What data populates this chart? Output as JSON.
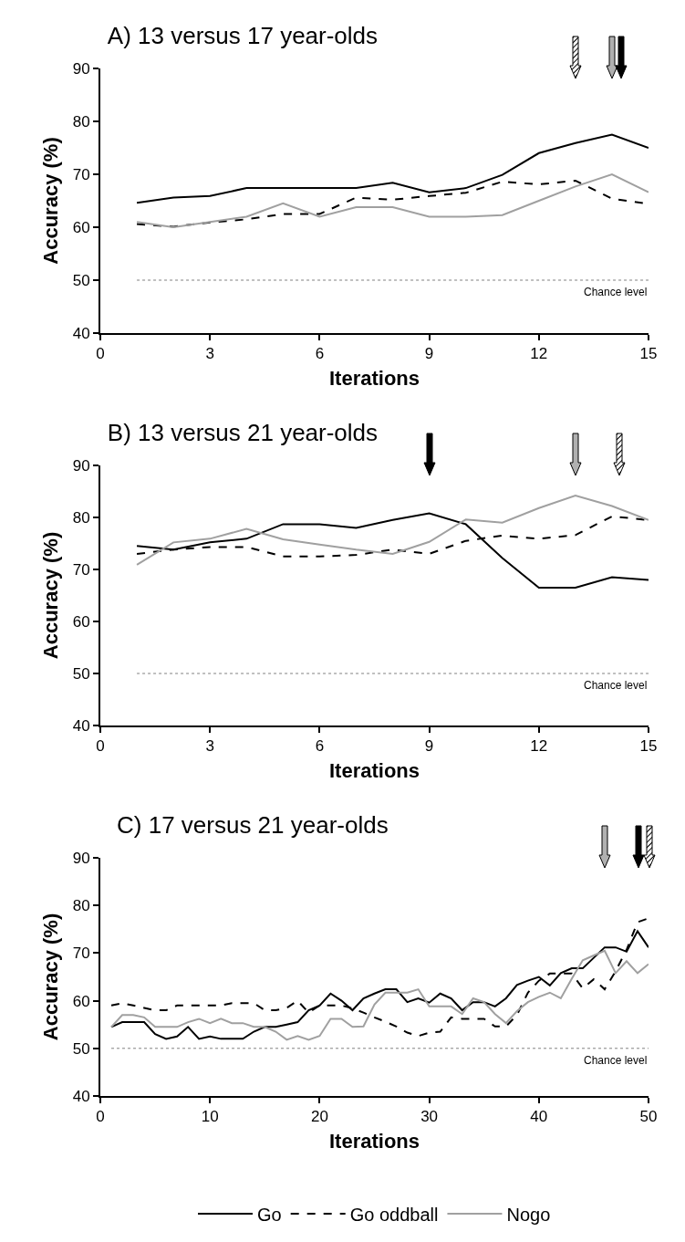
{
  "chart_data": [
    {
      "type": "line",
      "title": "A) 13 versus 17 year-olds",
      "xlabel": "Iterations",
      "ylabel": "Accuracy (%)",
      "x": [
        1,
        2,
        3,
        4,
        5,
        6,
        7,
        8,
        9,
        10,
        11,
        12,
        13,
        14,
        15
      ],
      "xlim": [
        0,
        15
      ],
      "xticks": [
        0,
        3,
        6,
        9,
        12,
        15
      ],
      "ylim": [
        40,
        90
      ],
      "yticks": [
        40,
        50,
        60,
        70,
        80,
        90
      ],
      "grid": false,
      "legend": false,
      "marker": "none",
      "series": [
        {
          "color": "#000000",
          "line_style": "solid",
          "values": [
            64.6,
            65.6,
            65.9,
            67.4,
            67.4,
            67.4,
            67.4,
            68.4,
            66.6,
            67.4,
            69.9,
            74,
            75.9,
            77.5,
            75
          ]
        },
        {
          "color": "#000000",
          "line_style": "dashed",
          "values": [
            60.6,
            60.1,
            60.9,
            61.5,
            62.5,
            62.5,
            65.6,
            65.2,
            65.9,
            66.5,
            68.6,
            68.1,
            68.8,
            65.4,
            64.4
          ]
        },
        {
          "color": "#a0a0a0",
          "line_style": "solid",
          "values": [
            61,
            60,
            61,
            62,
            64.5,
            62,
            63.8,
            63.8,
            62,
            62,
            62.3,
            65,
            67.7,
            70,
            66.6
          ]
        }
      ],
      "ref_lines": [
        {
          "axis": "y",
          "value": 50,
          "label": "Chance level",
          "color": "#808080",
          "line_style": "dotted"
        }
      ]
    },
    {
      "type": "line",
      "title": "B) 13 versus 21 year-olds",
      "xlabel": "Iterations",
      "ylabel": "Accuracy (%)",
      "x": [
        1,
        2,
        3,
        4,
        5,
        6,
        7,
        8,
        9,
        10,
        11,
        12,
        13,
        14,
        15
      ],
      "xlim": [
        0,
        15
      ],
      "xticks": [
        0,
        3,
        6,
        9,
        12,
        15
      ],
      "ylim": [
        40,
        90
      ],
      "yticks": [
        40,
        50,
        60,
        70,
        80,
        90
      ],
      "grid": false,
      "legend": false,
      "marker": "none",
      "series": [
        {
          "color": "#000000",
          "line_style": "solid",
          "values": [
            74.5,
            73.8,
            75.2,
            75.9,
            78.7,
            78.7,
            78,
            79.5,
            80.8,
            78.7,
            72.2,
            66.5,
            66.5,
            68.5,
            68
          ]
        },
        {
          "color": "#000000",
          "line_style": "dashed",
          "values": [
            73,
            73.8,
            74.3,
            74.3,
            72.5,
            72.5,
            72.8,
            73.8,
            73,
            75.5,
            76.5,
            75.9,
            76.6,
            80.2,
            79.5
          ]
        },
        {
          "color": "#a0a0a0",
          "line_style": "solid",
          "values": [
            70.9,
            75.2,
            75.9,
            77.8,
            75.8,
            74.8,
            73.8,
            73,
            75.3,
            79.6,
            79,
            81.8,
            84.2,
            82.2,
            79.5
          ]
        }
      ],
      "ref_lines": [
        {
          "axis": "y",
          "value": 50,
          "label": "Chance level",
          "color": "#808080",
          "line_style": "dotted"
        }
      ]
    },
    {
      "type": "line",
      "title": "C) 17 versus 21 year-olds",
      "xlabel": "Iterations",
      "ylabel": "Accuracy (%)",
      "x": [
        1,
        2,
        3,
        4,
        5,
        6,
        7,
        8,
        9,
        10,
        11,
        12,
        13,
        14,
        15,
        16,
        17,
        18,
        19,
        20,
        21,
        22,
        23,
        24,
        25,
        26,
        27,
        28,
        29,
        30,
        31,
        32,
        33,
        34,
        35,
        36,
        37,
        38,
        39,
        40,
        41,
        42,
        43,
        44,
        45,
        46,
        47,
        48,
        49,
        50
      ],
      "xlim": [
        0,
        50
      ],
      "xticks": [
        0,
        10,
        20,
        30,
        40,
        50
      ],
      "ylim": [
        40,
        90
      ],
      "yticks": [
        40,
        50,
        60,
        70,
        80,
        90
      ],
      "grid": false,
      "legend": "bottom",
      "marker": "none",
      "series": [
        {
          "name": "Go",
          "color": "#000000",
          "line_style": "solid",
          "values": [
            54.5,
            55.5,
            55.5,
            55.5,
            53,
            52,
            52.5,
            54.5,
            52,
            52.5,
            52,
            52,
            52,
            53.5,
            54.5,
            54.5,
            55,
            55.5,
            58,
            59,
            61.5,
            60,
            58,
            60.5,
            61.5,
            62.4,
            62.4,
            59.7,
            60.5,
            59.6,
            61.5,
            60.5,
            58,
            59.7,
            59.7,
            58.8,
            60.5,
            63.3,
            64.2,
            65,
            63.2,
            65.8,
            66.8,
            66.8,
            69,
            71.2,
            71.2,
            70.3,
            74.6,
            71.2
          ]
        },
        {
          "name": "Go oddball",
          "color": "#000000",
          "line_style": "dashed",
          "values": [
            59,
            59.5,
            59,
            58.5,
            58,
            58,
            59,
            59,
            59,
            59,
            59,
            59.5,
            59.5,
            59.5,
            58,
            58,
            58.5,
            60,
            57.5,
            59,
            59,
            59,
            58.4,
            57.5,
            56.5,
            55.6,
            54.6,
            53.3,
            52.6,
            53.3,
            53.5,
            56.5,
            56.2,
            56.2,
            56.2,
            54.6,
            54.6,
            57,
            61.7,
            64.2,
            65.7,
            65.7,
            65.7,
            62.6,
            64.5,
            62.4,
            66.2,
            70.7,
            76.5,
            77.3
          ]
        },
        {
          "name": "Nogo",
          "color": "#a0a0a0",
          "line_style": "solid",
          "values": [
            54.5,
            57,
            57,
            56.5,
            54.5,
            54.5,
            54.5,
            55.5,
            56.2,
            55.3,
            56.2,
            55.3,
            55.3,
            54.5,
            54.5,
            53.5,
            51.8,
            52.6,
            51.8,
            52.6,
            56.2,
            56.2,
            54.5,
            54.6,
            59.2,
            61.7,
            61.7,
            61.7,
            62.4,
            58.8,
            58.8,
            58.8,
            57.2,
            60.5,
            59.7,
            57.2,
            55.3,
            57.8,
            59.7,
            60.8,
            61.7,
            60.5,
            64.6,
            68.5,
            69.5,
            70.5,
            65.8,
            68.3,
            65.8,
            67.7
          ]
        }
      ],
      "ref_lines": [
        {
          "axis": "y",
          "value": 50,
          "label": "Chance level",
          "color": "#808080",
          "line_style": "dotted"
        }
      ]
    }
  ]
}
